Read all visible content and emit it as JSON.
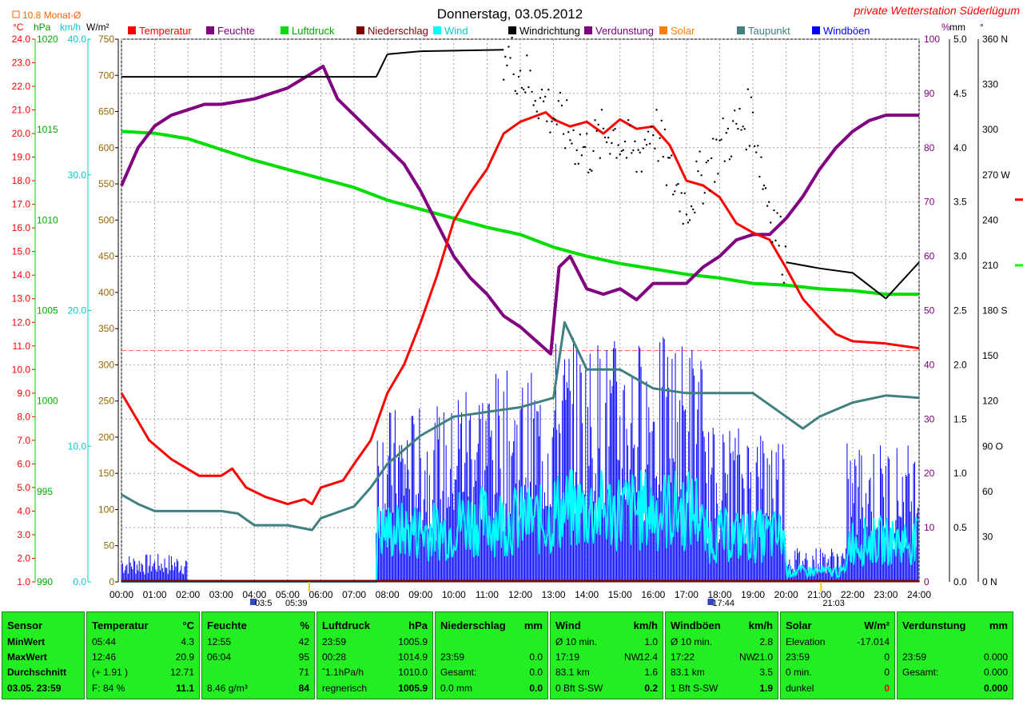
{
  "title": "Donnerstag, 03.05.2012",
  "station": "private Wetterstation Süderlügum",
  "monthly_avg_label": "10.8 Monat-Ø",
  "unit_labels": {
    "temp": "°C",
    "hpa": "hPa",
    "kmh": "km/h",
    "wm2": "W/m²",
    "pct": "%",
    "mm": "mm",
    "deg": "°"
  },
  "legend": [
    {
      "label": "Temperatur",
      "color": "#ff0000"
    },
    {
      "label": "Feuchte",
      "color": "#800080"
    },
    {
      "label": "Luftdruck",
      "color": "#00dd00"
    },
    {
      "label": "Niederschlag",
      "color": "#800000"
    },
    {
      "label": "Wind",
      "color": "#00ffff"
    },
    {
      "label": "Windrichtung",
      "color": "#000000"
    },
    {
      "label": "Verdunstung",
      "color": "#800080"
    },
    {
      "label": "Solar",
      "color": "#ff8000"
    },
    {
      "label": "Taupunkt",
      "color": "#408080"
    },
    {
      "label": "Windböen",
      "color": "#0000ff"
    }
  ],
  "time_labels": [
    "00:00",
    "01:00",
    "02:00",
    "03:00",
    "04:00",
    "05:00",
    "06:00",
    "07:00",
    "08:00",
    "09:00",
    "10:00",
    "11:00",
    "12:00",
    "13:00",
    "14:00",
    "15:00",
    "16:00",
    "17:00",
    "18:00",
    "19:00",
    "20:00",
    "21:00",
    "22:00",
    "23:00",
    "24:00"
  ],
  "sun_markers": [
    "03:5",
    "05:39",
    "17:44",
    "21:03"
  ],
  "axis_temp": [
    "24.0",
    "23.0",
    "22.0",
    "21.0",
    "20.0",
    "19.0",
    "18.0",
    "17.0",
    "16.0",
    "15.0",
    "14.0",
    "13.0",
    "12.0",
    "11.0",
    "10.0",
    "9.0",
    "8.0",
    "7.0",
    "6.0",
    "5.0",
    "4.0",
    "3.0",
    "2.0",
    "1.0"
  ],
  "axis_hpa": [
    "1020",
    "1015",
    "1010",
    "1005",
    "1000",
    "995",
    "990"
  ],
  "axis_kmh": [
    "40.0",
    "30.0",
    "20.0",
    "10.0",
    "0.0"
  ],
  "axis_wm2": [
    "750",
    "700",
    "650",
    "600",
    "550",
    "500",
    "450",
    "400",
    "350",
    "300",
    "250",
    "200",
    "150",
    "100",
    "50",
    "0"
  ],
  "axis_pct": [
    "100",
    "90",
    "80",
    "70",
    "60",
    "50",
    "40",
    "30",
    "20",
    "10",
    "0"
  ],
  "axis_mm": [
    "5.0",
    "4.5",
    "4.0",
    "3.5",
    "3.0",
    "2.5",
    "2.0",
    "1.5",
    "1.0",
    "0.5",
    "0.0"
  ],
  "axis_deg": [
    "360 N",
    "330",
    "300",
    "270 W",
    "240",
    "210",
    "180 S",
    "150",
    "120",
    "90 O",
    "60",
    "30",
    "0   N"
  ],
  "chart_data": {
    "type": "line",
    "title": "Donnerstag, 03.05.2012",
    "x_range": [
      "00:00",
      "24:00"
    ],
    "series": [
      {
        "name": "Temperatur",
        "unit": "°C",
        "color": "#ff0000",
        "points": [
          [
            "00:00",
            9.0
          ],
          [
            "00:20",
            8.2
          ],
          [
            "00:50",
            7.0
          ],
          [
            "01:30",
            6.2
          ],
          [
            "02:20",
            5.5
          ],
          [
            "03:00",
            5.5
          ],
          [
            "03:20",
            5.8
          ],
          [
            "03:45",
            5.0
          ],
          [
            "04:20",
            4.6
          ],
          [
            "05:00",
            4.3
          ],
          [
            "05:30",
            4.5
          ],
          [
            "05:44",
            4.3
          ],
          [
            "06:00",
            5.0
          ],
          [
            "06:40",
            5.3
          ],
          [
            "07:00",
            6.0
          ],
          [
            "07:30",
            7.0
          ],
          [
            "08:00",
            9.0
          ],
          [
            "08:30",
            10.2
          ],
          [
            "09:00",
            12.0
          ],
          [
            "09:30",
            14.0
          ],
          [
            "10:00",
            16.3
          ],
          [
            "10:30",
            17.5
          ],
          [
            "11:00",
            18.5
          ],
          [
            "11:30",
            20.0
          ],
          [
            "12:00",
            20.5
          ],
          [
            "12:46",
            20.9
          ],
          [
            "13:00",
            20.6
          ],
          [
            "13:30",
            20.3
          ],
          [
            "14:00",
            20.5
          ],
          [
            "14:30",
            20.0
          ],
          [
            "15:00",
            20.6
          ],
          [
            "15:30",
            20.2
          ],
          [
            "16:00",
            20.3
          ],
          [
            "16:30",
            19.5
          ],
          [
            "17:00",
            18.0
          ],
          [
            "17:30",
            17.8
          ],
          [
            "18:00",
            17.3
          ],
          [
            "18:30",
            16.2
          ],
          [
            "19:00",
            15.8
          ],
          [
            "19:30",
            15.5
          ],
          [
            "20:00",
            14.3
          ],
          [
            "20:30",
            13.0
          ],
          [
            "21:00",
            12.2
          ],
          [
            "21:30",
            11.5
          ],
          [
            "22:00",
            11.2
          ],
          [
            "23:00",
            11.1
          ],
          [
            "24:00",
            10.9
          ]
        ]
      },
      {
        "name": "Feuchte",
        "unit": "%",
        "color": "#800080",
        "points": [
          [
            "00:00",
            73
          ],
          [
            "00:30",
            80
          ],
          [
            "01:00",
            84
          ],
          [
            "01:30",
            86
          ],
          [
            "02:00",
            87
          ],
          [
            "02:30",
            88
          ],
          [
            "03:00",
            88
          ],
          [
            "04:00",
            89
          ],
          [
            "05:00",
            91
          ],
          [
            "06:04",
            95
          ],
          [
            "06:30",
            89
          ],
          [
            "07:00",
            86
          ],
          [
            "07:30",
            83
          ],
          [
            "08:00",
            80
          ],
          [
            "08:30",
            77
          ],
          [
            "09:00",
            72
          ],
          [
            "09:30",
            66
          ],
          [
            "10:00",
            60
          ],
          [
            "10:30",
            56
          ],
          [
            "11:00",
            53
          ],
          [
            "11:30",
            49
          ],
          [
            "12:00",
            47
          ],
          [
            "12:55",
            42
          ],
          [
            "13:10",
            58
          ],
          [
            "13:30",
            60
          ],
          [
            "14:00",
            54
          ],
          [
            "14:30",
            53
          ],
          [
            "15:00",
            54
          ],
          [
            "15:30",
            52
          ],
          [
            "16:00",
            55
          ],
          [
            "16:30",
            55
          ],
          [
            "17:00",
            55
          ],
          [
            "17:30",
            58
          ],
          [
            "18:00",
            60
          ],
          [
            "18:30",
            63
          ],
          [
            "19:00",
            64
          ],
          [
            "19:30",
            64
          ],
          [
            "20:00",
            67
          ],
          [
            "20:30",
            71
          ],
          [
            "21:00",
            76
          ],
          [
            "21:30",
            80
          ],
          [
            "22:00",
            83
          ],
          [
            "22:30",
            85
          ],
          [
            "23:00",
            86
          ],
          [
            "24:00",
            86
          ]
        ]
      },
      {
        "name": "Luftdruck",
        "unit": "hPa",
        "color": "#00dd00",
        "points": [
          [
            "00:00",
            1014.9
          ],
          [
            "01:00",
            1014.8
          ],
          [
            "02:00",
            1014.5
          ],
          [
            "03:00",
            1013.9
          ],
          [
            "04:00",
            1013.3
          ],
          [
            "05:00",
            1012.8
          ],
          [
            "06:00",
            1012.3
          ],
          [
            "07:00",
            1011.8
          ],
          [
            "08:00",
            1011.1
          ],
          [
            "09:00",
            1010.6
          ],
          [
            "10:00",
            1010.1
          ],
          [
            "11:00",
            1009.6
          ],
          [
            "12:00",
            1009.2
          ],
          [
            "13:00",
            1008.5
          ],
          [
            "14:00",
            1008.0
          ],
          [
            "15:00",
            1007.6
          ],
          [
            "16:00",
            1007.3
          ],
          [
            "17:00",
            1007.0
          ],
          [
            "18:00",
            1006.8
          ],
          [
            "19:00",
            1006.5
          ],
          [
            "20:00",
            1006.4
          ],
          [
            "21:00",
            1006.2
          ],
          [
            "22:00",
            1006.1
          ],
          [
            "23:00",
            1005.9
          ],
          [
            "23:59",
            1005.9
          ]
        ]
      },
      {
        "name": "Taupunkt",
        "unit": "°C",
        "color": "#408080",
        "points": [
          [
            "00:00",
            4.7
          ],
          [
            "00:30",
            4.3
          ],
          [
            "01:00",
            4.0
          ],
          [
            "02:00",
            4.0
          ],
          [
            "03:00",
            4.0
          ],
          [
            "03:30",
            3.9
          ],
          [
            "04:00",
            3.4
          ],
          [
            "05:00",
            3.4
          ],
          [
            "05:44",
            3.2
          ],
          [
            "06:00",
            3.7
          ],
          [
            "07:00",
            4.2
          ],
          [
            "07:30",
            5.0
          ],
          [
            "08:00",
            6.0
          ],
          [
            "09:00",
            7.2
          ],
          [
            "10:00",
            8.0
          ],
          [
            "11:00",
            8.2
          ],
          [
            "12:00",
            8.4
          ],
          [
            "13:00",
            8.8
          ],
          [
            "13:20",
            12.0
          ],
          [
            "14:00",
            10.0
          ],
          [
            "15:00",
            10.0
          ],
          [
            "16:00",
            9.2
          ],
          [
            "17:00",
            9.0
          ],
          [
            "18:00",
            9.0
          ],
          [
            "19:00",
            9.0
          ],
          [
            "20:00",
            8.0
          ],
          [
            "20:30",
            7.5
          ],
          [
            "21:00",
            8.0
          ],
          [
            "22:00",
            8.6
          ],
          [
            "23:00",
            8.9
          ],
          [
            "24:00",
            8.8
          ]
        ]
      },
      {
        "name": "Windrichtung",
        "unit": "°",
        "color": "#000000",
        "points": [
          [
            "00:00",
            335
          ],
          [
            "07:40",
            335
          ],
          [
            "08:00",
            350
          ],
          [
            "09:00",
            352
          ],
          [
            "11:30",
            353
          ],
          [
            "13:00",
            310
          ],
          [
            "14:00",
            285
          ],
          [
            "14:45",
            300
          ],
          [
            "15:30",
            280
          ],
          [
            "16:00",
            305
          ],
          [
            "16:30",
            270
          ],
          [
            "17:00",
            250
          ],
          [
            "17:45",
            280
          ],
          [
            "18:15",
            295
          ],
          [
            "19:00",
            310
          ],
          [
            "19:20",
            265
          ],
          [
            "20:00",
            212
          ],
          [
            "21:00",
            208
          ],
          [
            "22:00",
            205
          ],
          [
            "23:00",
            188
          ],
          [
            "24:00",
            212
          ]
        ]
      },
      {
        "name": "Wind",
        "unit": "km/h",
        "color": "#00ffff",
        "stats": {
          "min": 1.0,
          "max": 12.4,
          "avg": 1.6
        }
      },
      {
        "name": "Windböen",
        "unit": "km/h",
        "color": "#0000ff",
        "stats": {
          "min": 2.8,
          "max": 21.0,
          "avg": 3.5
        }
      },
      {
        "name": "Niederschlag",
        "unit": "mm",
        "color": "#800000",
        "total": 0.0
      },
      {
        "name": "Solar",
        "unit": "W/m²",
        "color": "#ff8000",
        "value": 0
      }
    ]
  },
  "table": {
    "sensor": {
      "title": "Sensor",
      "rows": [
        "MinWert",
        "MaxWert",
        "Durchschnitt",
        "03.05. 23:59"
      ]
    },
    "temperatur": {
      "title": "Temperatur",
      "unit": "°C",
      "rows": [
        [
          "05:44",
          "4.3"
        ],
        [
          "12:46",
          "20.9"
        ],
        [
          "(+ 1.91 )",
          "12.71"
        ],
        [
          "F: 84 %",
          "11.1"
        ]
      ]
    },
    "feuchte": {
      "title": "Feuchte",
      "unit": "%",
      "rows": [
        [
          "12:55",
          "42"
        ],
        [
          "06:04",
          "95"
        ],
        [
          "",
          "71"
        ],
        [
          "8.46 g/m³",
          "84"
        ]
      ]
    },
    "luftdruck": {
      "title": "Luftdruck",
      "unit": "hPa",
      "rows": [
        [
          "23:59",
          "1005.9"
        ],
        [
          "00:28",
          "1014.9"
        ],
        [
          "ˆ1.1hPa/h",
          "1010.0"
        ],
        [
          "regnerisch",
          "1005.9"
        ]
      ]
    },
    "niederschlag": {
      "title": "Niederschlag",
      "unit": "mm",
      "rows": [
        [
          "",
          ""
        ],
        [
          "23:59",
          "0.0"
        ],
        [
          "Gesamt:",
          "0.0"
        ],
        [
          "0.0 mm",
          "0.0"
        ]
      ]
    },
    "wind": {
      "title": "Wind",
      "unit": "km/h",
      "rows": [
        [
          "Ø 10 min.",
          "",
          "1.0"
        ],
        [
          "17:19",
          "NW",
          "12.4"
        ],
        [
          "83.1 km",
          "",
          "1.6"
        ],
        [
          "0 Bft S-SW",
          "",
          "0.2"
        ]
      ]
    },
    "windboeen": {
      "title": "Windböen",
      "unit": "km/h",
      "rows": [
        [
          "Ø 10 min.",
          "",
          "2.8"
        ],
        [
          "17:22",
          "NW",
          "21.0"
        ],
        [
          "83.1 km",
          "",
          "3.5"
        ],
        [
          "1 Bft S-SW",
          "",
          "1.9"
        ]
      ]
    },
    "solar": {
      "title": "Solar",
      "unit": "W/m²",
      "rows": [
        [
          "Elevation",
          "-17.014"
        ],
        [
          "23:59",
          "0"
        ],
        [
          "0 min.",
          "0"
        ],
        [
          "dunkel",
          "0"
        ]
      ]
    },
    "verdunstung": {
      "title": "Verdunstung",
      "unit": "mm",
      "rows": [
        [
          "",
          ""
        ],
        [
          "23:59",
          "0.000"
        ],
        [
          "Gesamt:",
          "0.000"
        ],
        [
          "",
          "0.000"
        ]
      ]
    }
  }
}
